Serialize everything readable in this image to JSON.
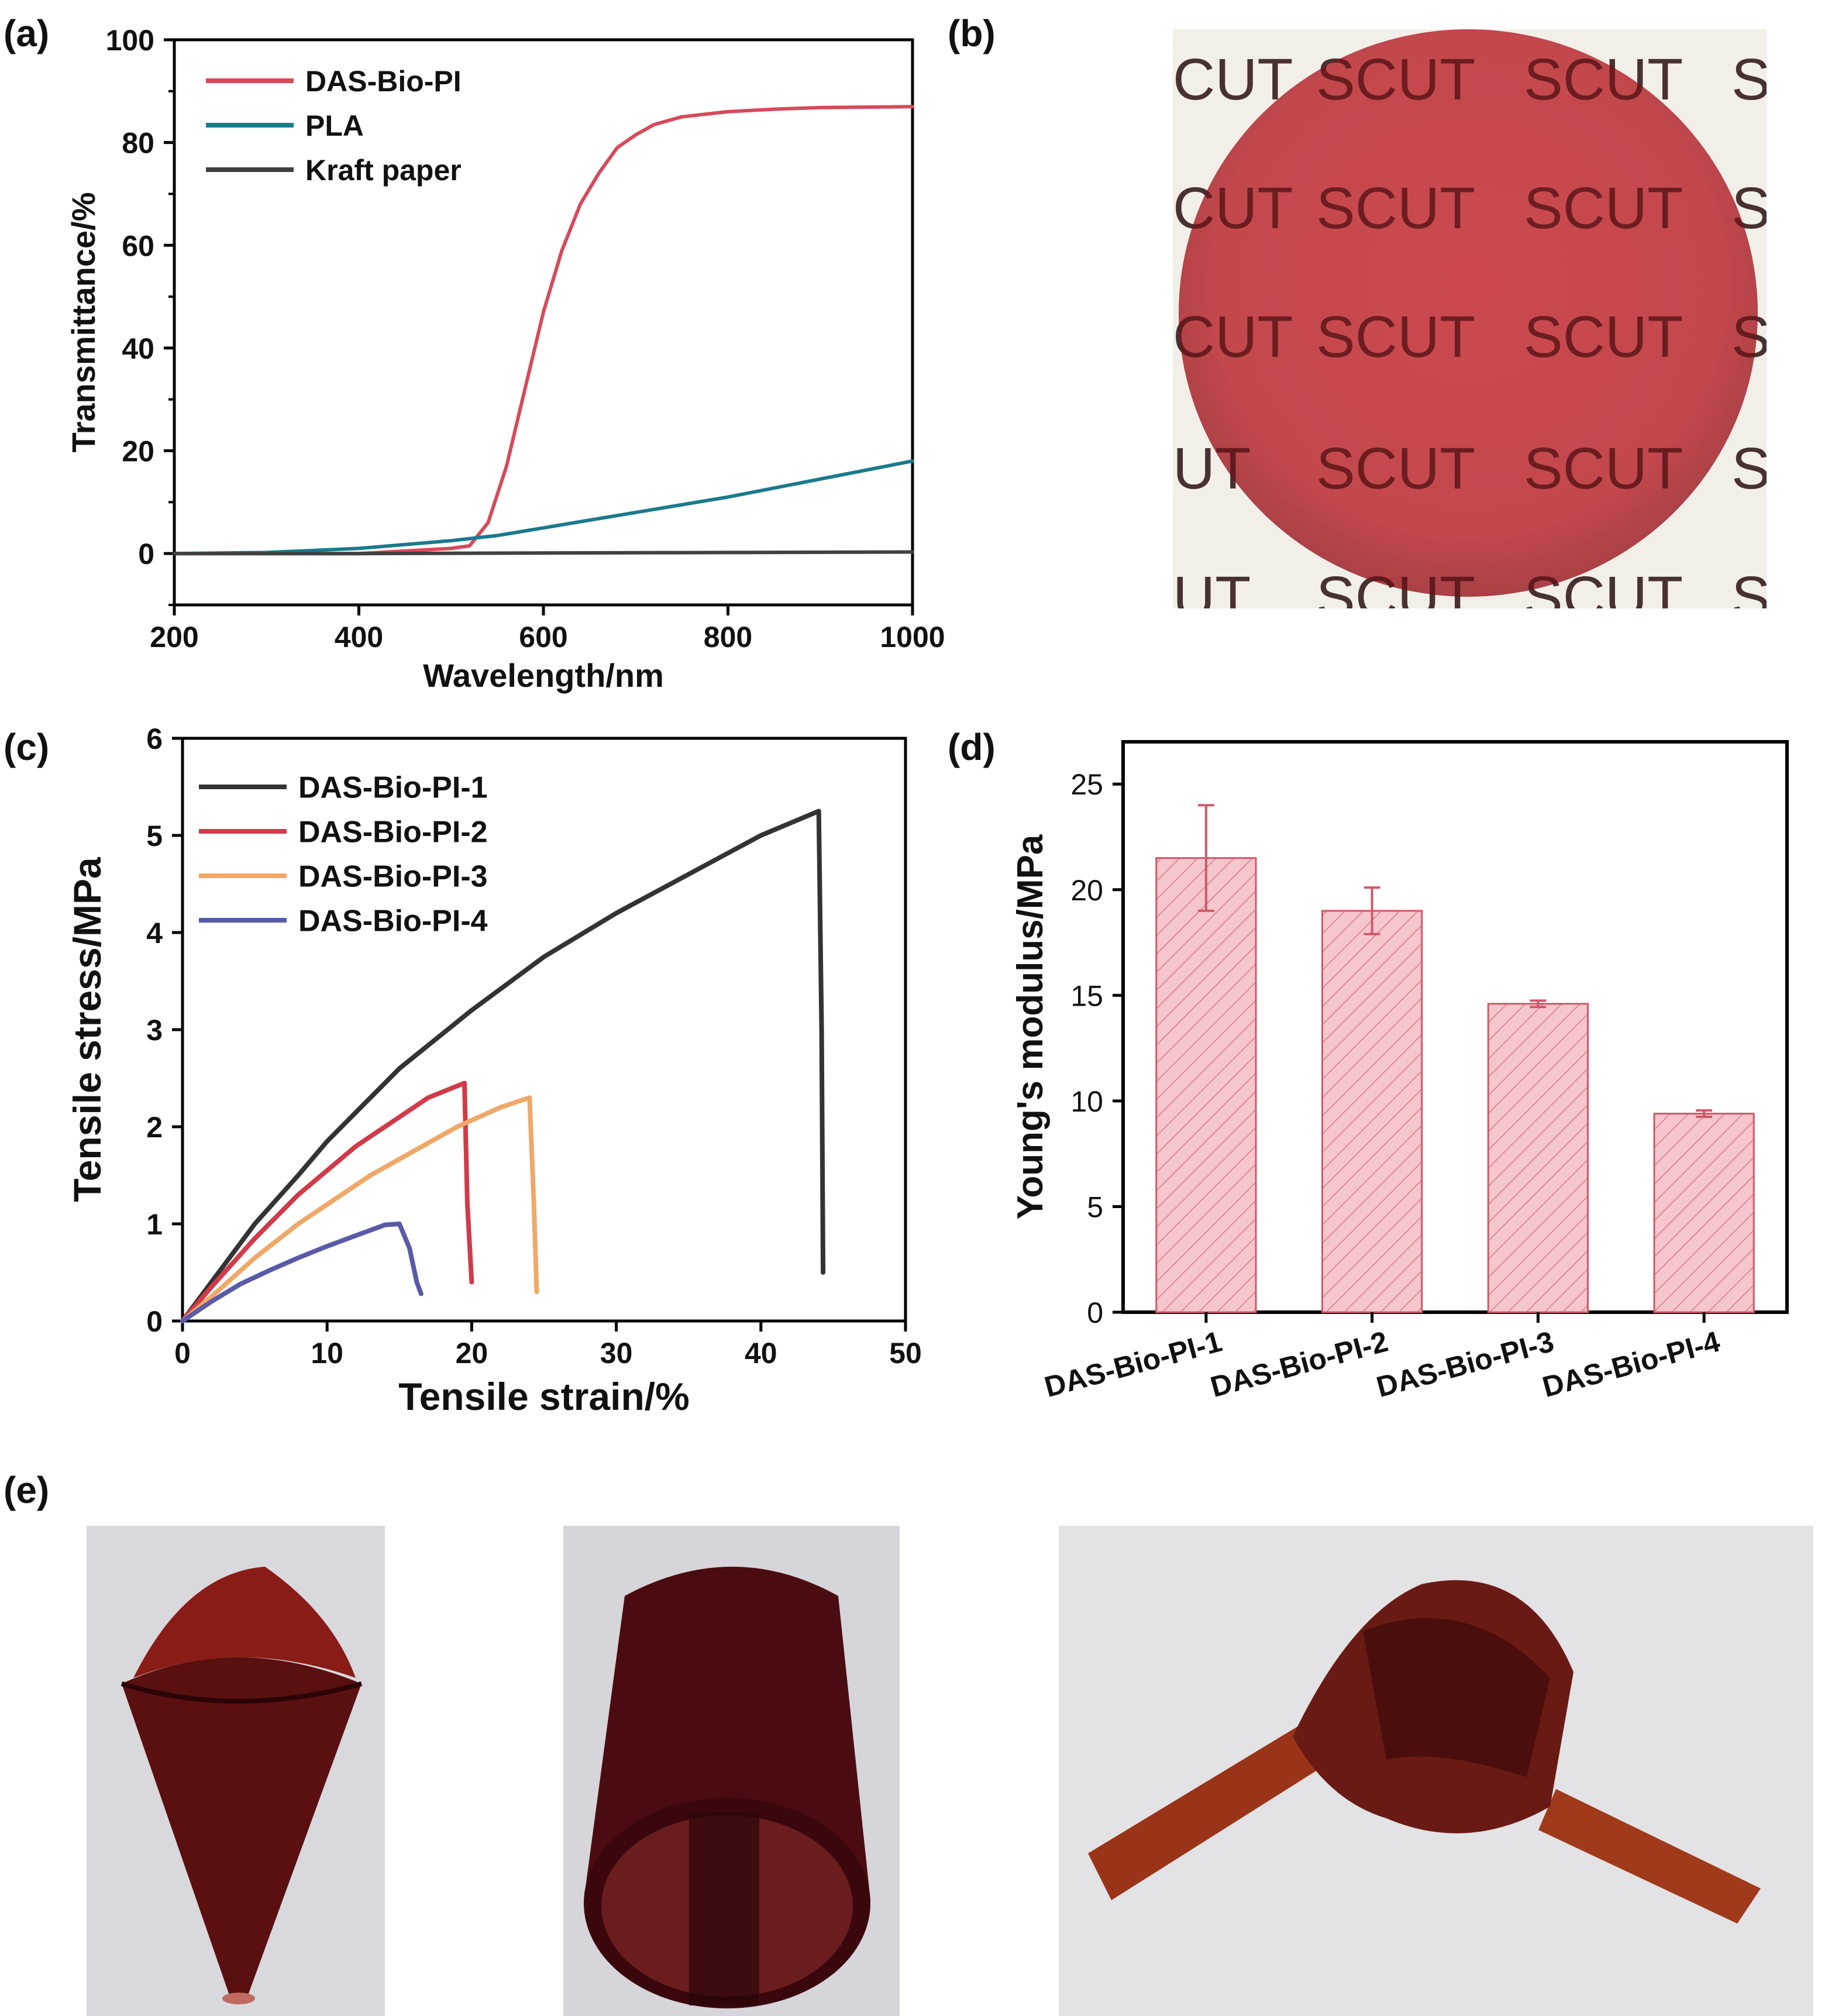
{
  "panels": {
    "a": "(a)",
    "b": "(b)",
    "c": "(c)",
    "d": "(d)",
    "e": "(e)"
  },
  "photo_b": {
    "overlay_text": "SCUT",
    "rows": [
      [
        "CUT",
        "SCUT",
        "SCUT",
        "S"
      ],
      [
        "CUT",
        "SCUT",
        "SCUT",
        "S"
      ],
      [
        "CUT",
        "SCUT",
        "SCUT",
        "S"
      ],
      [
        "UT",
        "SCUT",
        "SCUT",
        "S"
      ],
      [
        "UT",
        "SCUT",
        "SCUT",
        "S"
      ]
    ],
    "disc_color": "#b8232a",
    "background_color": "#f2efe9"
  },
  "photos_e": [
    {
      "subject": "cone-rolled film",
      "film_color": "#5a0f10"
    },
    {
      "subject": "cylinder-rolled film",
      "film_color": "#4a0c10"
    },
    {
      "subject": "knotted film strip",
      "film_color": "#6a1a14"
    }
  ],
  "chart_data": [
    {
      "id": "a",
      "type": "line",
      "xlabel": "Wavelength/nm",
      "ylabel": "Transmittance/%",
      "xlim": [
        200,
        1000
      ],
      "ylim": [
        -10,
        100
      ],
      "xticks": [
        "200",
        "400",
        "600",
        "800",
        "1000"
      ],
      "yticks": [
        "0",
        "20",
        "40",
        "60",
        "80",
        "100"
      ],
      "legend_position": "top-left",
      "series": [
        {
          "name": "DAS-Bio-PI",
          "color": "#d64a5a",
          "x": [
            200,
            300,
            400,
            500,
            520,
            540,
            560,
            580,
            600,
            620,
            640,
            660,
            680,
            700,
            720,
            750,
            800,
            850,
            900,
            1000
          ],
          "y": [
            0,
            0,
            0,
            1,
            1.5,
            6,
            17,
            32,
            47,
            59,
            68,
            74,
            79,
            81.5,
            83.5,
            85,
            86,
            86.5,
            86.8,
            87
          ]
        },
        {
          "name": "PLA",
          "color": "#1a7a8c",
          "x": [
            200,
            300,
            400,
            500,
            550,
            600,
            650,
            700,
            800,
            900,
            1000
          ],
          "y": [
            0,
            0.2,
            1,
            2.5,
            3.5,
            5,
            6.5,
            8,
            11,
            14.5,
            18
          ]
        },
        {
          "name": "Kraft paper",
          "color": "#404040",
          "x": [
            200,
            400,
            600,
            800,
            1000
          ],
          "y": [
            0,
            0,
            0.1,
            0.2,
            0.3
          ]
        }
      ]
    },
    {
      "id": "c",
      "type": "line",
      "xlabel": "Tensile strain/%",
      "ylabel": "Tensile stress/MPa",
      "xlim": [
        0,
        50
      ],
      "ylim": [
        0,
        6
      ],
      "xticks": [
        "0",
        "10",
        "20",
        "30",
        "40",
        "50"
      ],
      "yticks": [
        "0",
        "1",
        "2",
        "3",
        "4",
        "5",
        "6"
      ],
      "legend_position": "top-left",
      "series": [
        {
          "name": "DAS-Bio-PI-1",
          "color": "#333333",
          "x": [
            0,
            2,
            5,
            8,
            10,
            15,
            20,
            25,
            30,
            35,
            40,
            44,
            44.2,
            44.3
          ],
          "y": [
            0,
            0.4,
            1.0,
            1.5,
            1.85,
            2.6,
            3.2,
            3.75,
            4.2,
            4.6,
            5.0,
            5.25,
            3.0,
            0.5
          ]
        },
        {
          "name": "DAS-Bio-PI-2",
          "color": "#d23a4a",
          "x": [
            0,
            2,
            5,
            8,
            10,
            12,
            15,
            17,
            19.5,
            19.7,
            20
          ],
          "y": [
            0,
            0.35,
            0.85,
            1.3,
            1.55,
            1.8,
            2.1,
            2.3,
            2.45,
            1.2,
            0.4
          ]
        },
        {
          "name": "DAS-Bio-PI-3",
          "color": "#f0a868",
          "x": [
            0,
            2,
            5,
            8,
            10,
            13,
            16,
            19,
            22,
            24,
            24.3,
            24.5
          ],
          "y": [
            0,
            0.25,
            0.65,
            1.0,
            1.2,
            1.5,
            1.75,
            2.0,
            2.2,
            2.3,
            1.2,
            0.3
          ]
        },
        {
          "name": "DAS-Bio-PI-4",
          "color": "#5a5aaa",
          "x": [
            0,
            2,
            4,
            6,
            8,
            10,
            12,
            14,
            15,
            15.7,
            16.2,
            16.5
          ],
          "y": [
            0,
            0.2,
            0.38,
            0.52,
            0.65,
            0.77,
            0.88,
            0.99,
            1.0,
            0.75,
            0.4,
            0.28
          ]
        }
      ]
    },
    {
      "id": "d",
      "type": "bar",
      "xlabel": "",
      "ylabel": "Young's modulus/MPa",
      "ylim": [
        0,
        27
      ],
      "yticks": [
        "0",
        "5",
        "10",
        "15",
        "20",
        "25"
      ],
      "categories": [
        "DAS-Bio-PI-1",
        "DAS-Bio-PI-2",
        "DAS-Bio-PI-3",
        "DAS-Bio-PI-4"
      ],
      "values": [
        21.5,
        19.0,
        14.6,
        9.4
      ],
      "errors": [
        2.5,
        1.1,
        0.15,
        0.15
      ],
      "bar_fill": "#f5c6cc",
      "bar_stroke": "#d0586a"
    }
  ]
}
